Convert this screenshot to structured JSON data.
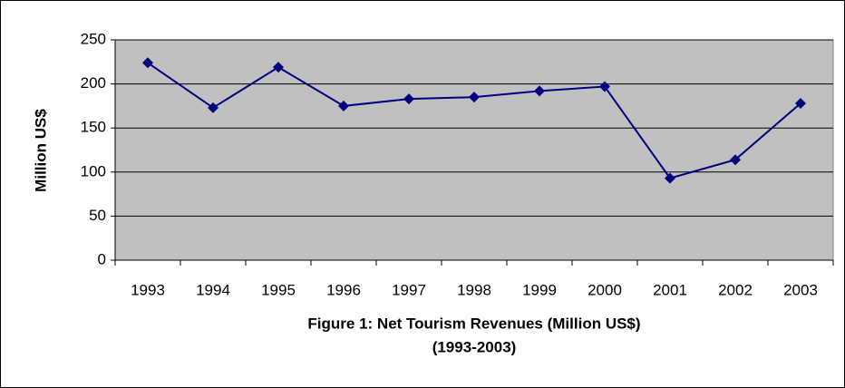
{
  "chart_data": {
    "type": "line",
    "title": "Figure 1: Net Tourism Revenues (Million US$)",
    "subtitle": "(1993-2003)",
    "y_label": "Million  US$",
    "categories": [
      "1993",
      "1994",
      "1995",
      "1996",
      "1997",
      "1998",
      "1999",
      "2000",
      "2001",
      "2002",
      "2003"
    ],
    "values": [
      224,
      173,
      219,
      175,
      183,
      185,
      192,
      197,
      93,
      114,
      178
    ],
    "color": "#000080",
    "ylim": [
      0,
      250
    ],
    "yticks": [
      0,
      50,
      100,
      150,
      200,
      250
    ],
    "grid": true
  }
}
